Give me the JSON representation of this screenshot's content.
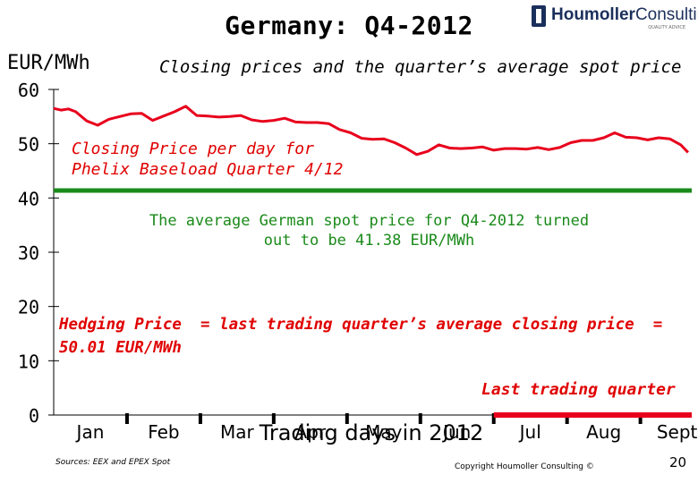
{
  "header": {
    "title": "Germany: Q4-2012",
    "subtitle": "Closing prices and the quarter’s average spot price",
    "y_unit": "EUR/MWh"
  },
  "logo": {
    "name_bold": "Houmoller",
    "name_regular": "Consulting",
    "tagline": "QUALITY ADVICE"
  },
  "footer": {
    "source": "Sources: EEX and EPEX Spot",
    "copyright": "Copyright Houmoller Consulting ©",
    "page_number": "20"
  },
  "annotations": {
    "closing_price": "Closing Price per day for Phelix Baseload Quarter 4/12",
    "spot_average": "The average German spot price for Q4-2012 turned out to be 41.38 EUR/MWh",
    "hedging": "Hedging Price  = last trading quarter’s average closing price  =  50.01 EUR/MWh",
    "last_trading": "Last trading quarter"
  },
  "colors": {
    "price_line": "#e8001c",
    "average_line": "#1a8a1a",
    "axis": "#000000",
    "annotation_red": "#e00000",
    "annotation_green": "#1a8a1a"
  },
  "chart_data": {
    "type": "line",
    "title": "Germany: Q4-2012",
    "subtitle": "Closing prices and the quarter’s average spot price",
    "xlabel": "Trading days in 2012",
    "ylabel": "EUR/MWh",
    "ylim": [
      0,
      60
    ],
    "yticks": [
      0,
      10,
      20,
      30,
      40,
      50,
      60
    ],
    "xlim": [
      0,
      8.7
    ],
    "x_month_labels": [
      "Jan",
      "Feb",
      "Mar",
      "Apr",
      "May",
      "Jun",
      "Jul",
      "Aug",
      "Sept"
    ],
    "grid": false,
    "series": [
      {
        "name": "Closing Price per day for Phelix Baseload Quarter 4/12",
        "style": "line",
        "x": [
          0.0,
          0.1,
          0.2,
          0.3,
          0.45,
          0.6,
          0.75,
          0.9,
          1.05,
          1.2,
          1.35,
          1.5,
          1.65,
          1.8,
          1.95,
          2.1,
          2.25,
          2.4,
          2.55,
          2.7,
          2.85,
          3.0,
          3.15,
          3.3,
          3.45,
          3.6,
          3.75,
          3.9,
          4.05,
          4.2,
          4.35,
          4.5,
          4.65,
          4.8,
          4.95,
          5.1,
          5.25,
          5.4,
          5.55,
          5.7,
          5.85,
          6.0,
          6.15,
          6.3,
          6.45,
          6.6,
          6.75,
          6.9,
          7.05,
          7.2,
          7.35,
          7.5,
          7.65,
          7.8,
          7.95,
          8.1,
          8.25,
          8.4,
          8.55,
          8.65
        ],
        "y": [
          56.5,
          56.2,
          56.4,
          55.9,
          54.2,
          53.4,
          54.5,
          55.0,
          55.5,
          55.6,
          54.3,
          55.1,
          55.9,
          56.9,
          55.2,
          55.1,
          54.9,
          55.0,
          55.2,
          54.4,
          54.1,
          54.3,
          54.7,
          54.0,
          53.9,
          53.9,
          53.7,
          52.6,
          52.0,
          51.0,
          50.8,
          50.9,
          50.2,
          49.2,
          48.0,
          48.6,
          49.8,
          49.2,
          49.1,
          49.2,
          49.4,
          48.8,
          49.1,
          49.1,
          49.0,
          49.3,
          48.9,
          49.3,
          50.2,
          50.6,
          50.6,
          51.1,
          52.0,
          51.2,
          51.1,
          50.7,
          51.1,
          50.9,
          49.8,
          48.4
        ]
      },
      {
        "name": "The average German spot price for Q4-2012",
        "style": "horizontal",
        "y": 41.38
      },
      {
        "name": "Last trading quarter",
        "style": "bar_segment",
        "x_range": [
          6.0,
          8.7
        ],
        "y": 0
      }
    ]
  }
}
